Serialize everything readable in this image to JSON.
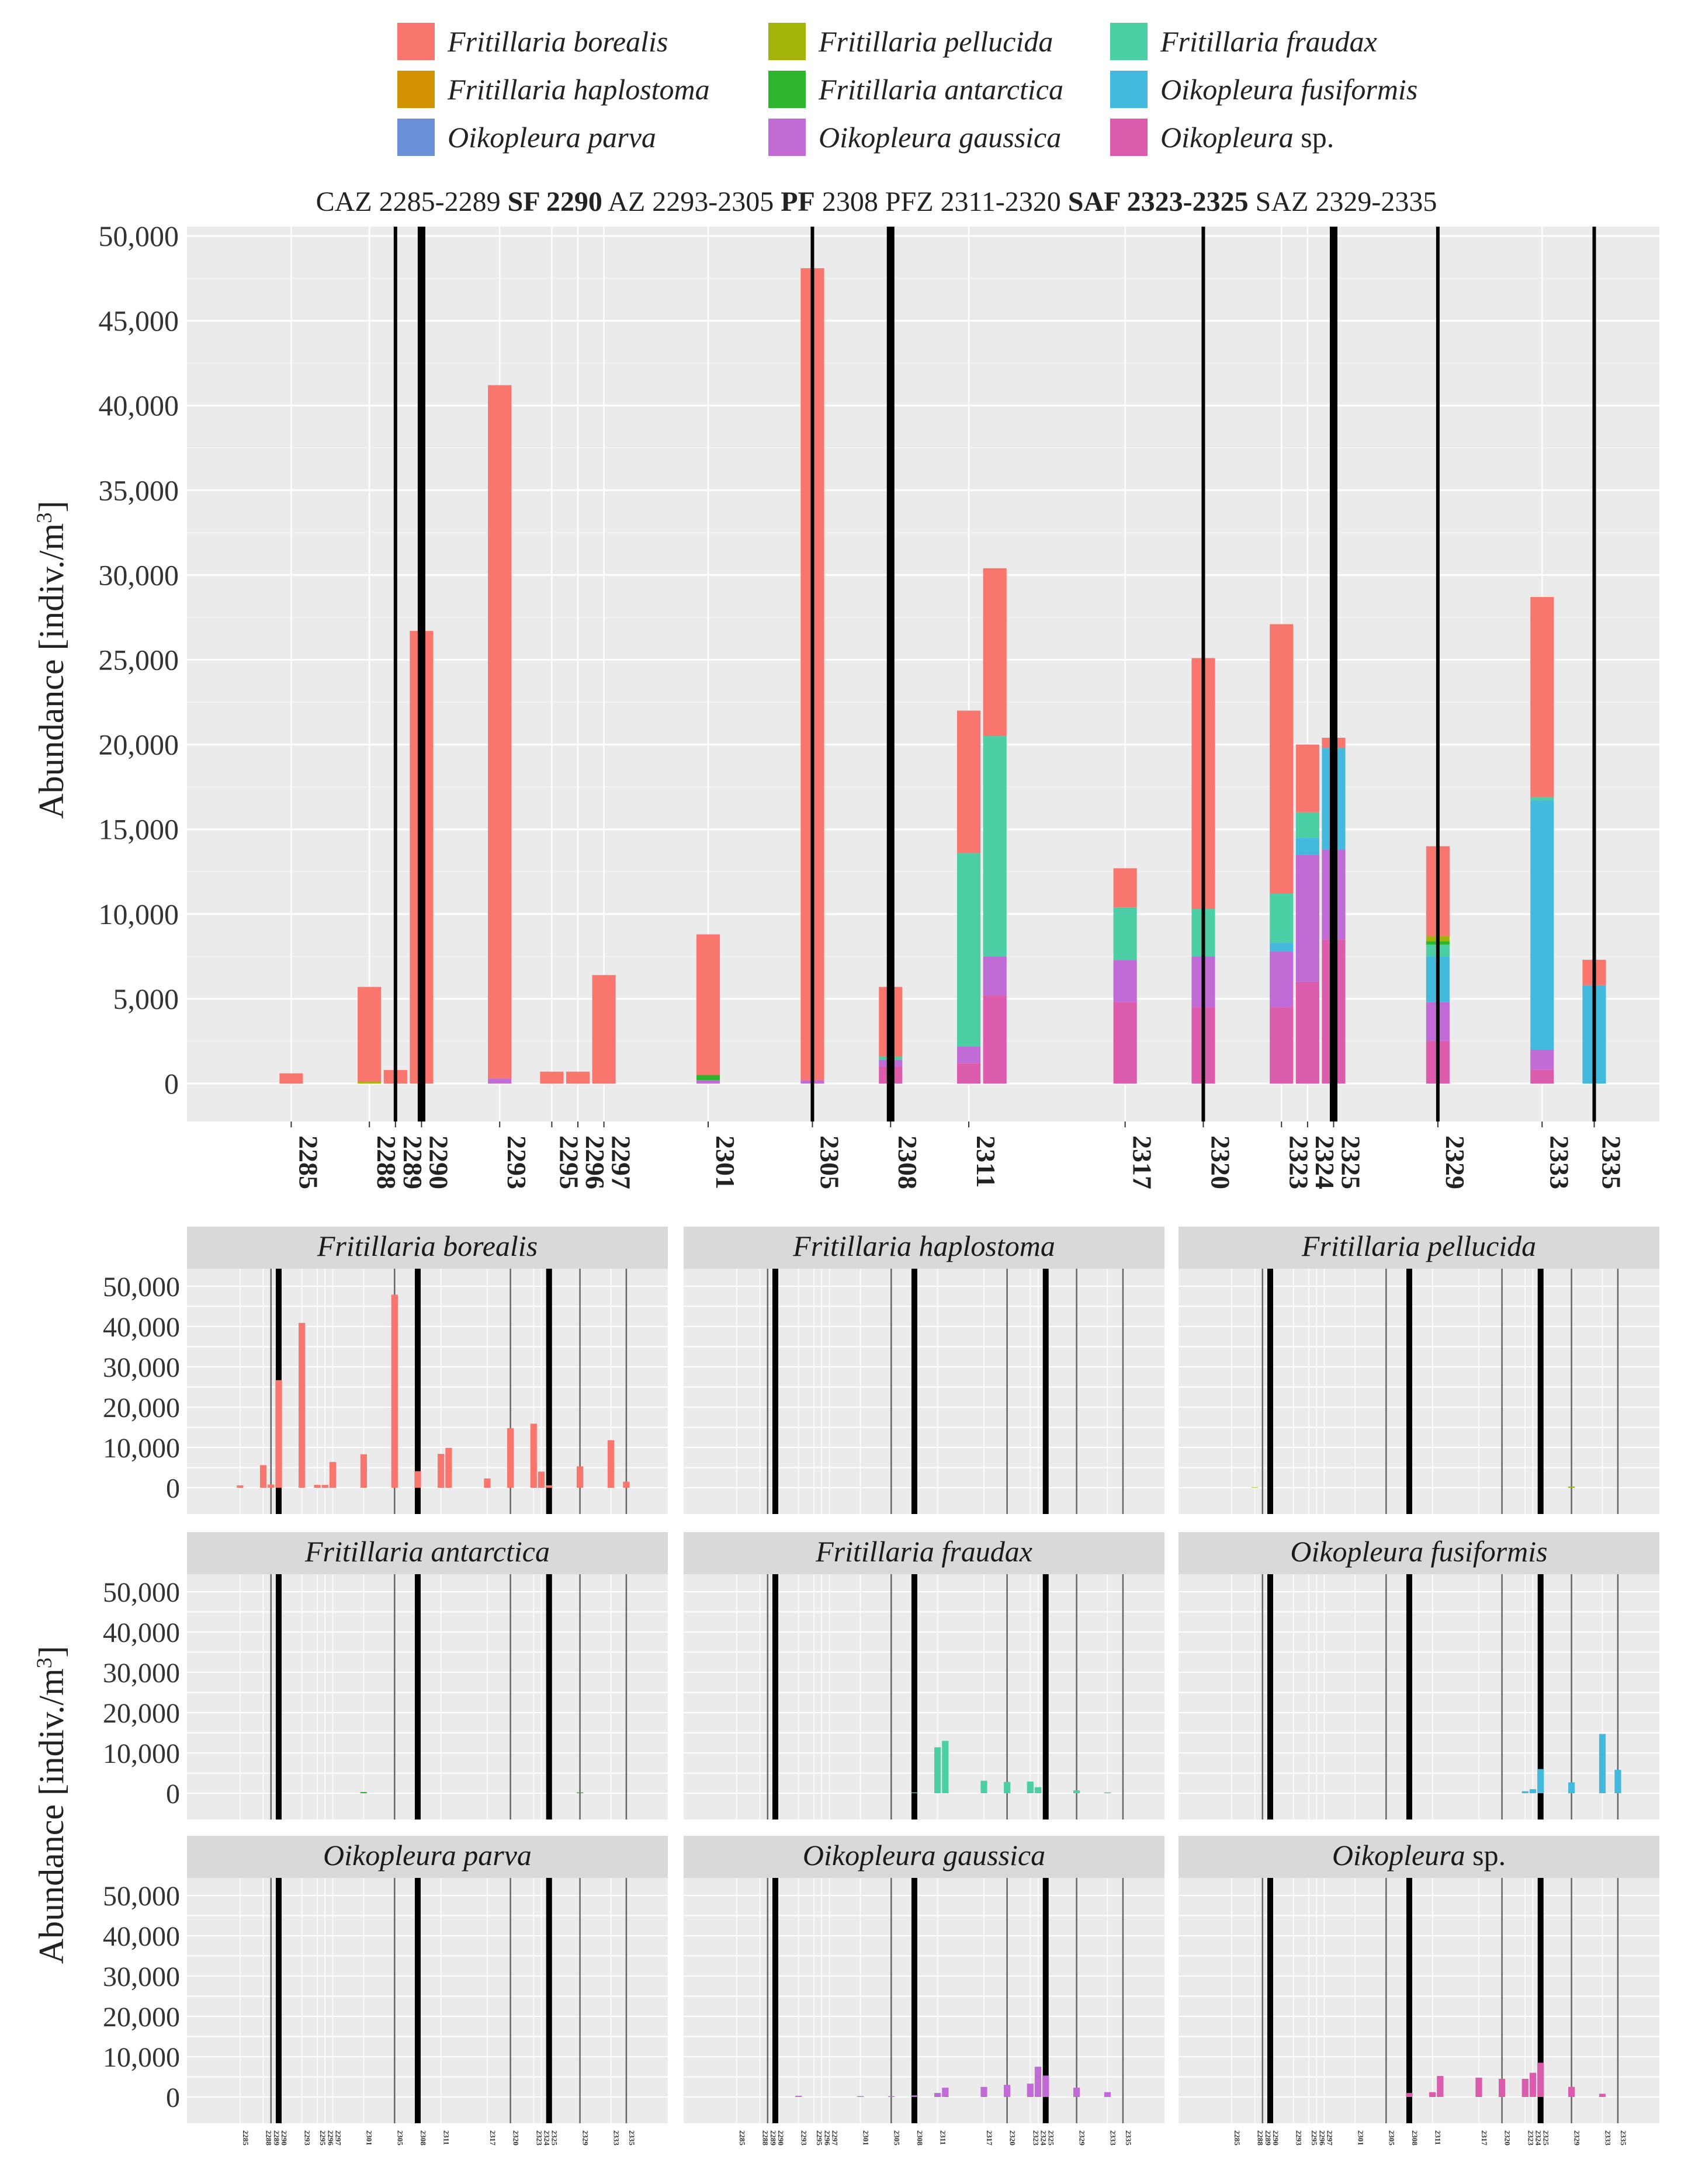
{
  "legend": [
    {
      "genus": "Fritillaria",
      "epithet": "borealis",
      "color": "#F8766D"
    },
    {
      "genus": "Fritillaria",
      "epithet": "haplostoma",
      "color": "#D39200"
    },
    {
      "genus": "Oikopleura",
      "epithet": "parva",
      "color": "#6A8FD6"
    },
    {
      "genus": "Fritillaria",
      "epithet": "pellucida",
      "color": "#A3B408"
    },
    {
      "genus": "Fritillaria",
      "epithet": "antarctica",
      "color": "#2DB52D"
    },
    {
      "genus": "Oikopleura",
      "epithet": "gaussica",
      "color": "#C06BD6"
    },
    {
      "genus": "Fritillaria",
      "epithet": "fraudax",
      "color": "#4DCFA6"
    },
    {
      "genus": "Oikopleura",
      "epithet": "fusiformis",
      "color": "#43B9DE"
    },
    {
      "genus": "Oikopleura",
      "epithet": "sp.",
      "color": "#DB5CAC"
    }
  ],
  "zones_header": [
    {
      "text": "CAZ 2285-2289 ",
      "bold": false
    },
    {
      "text": "SF 2290",
      "bold": true
    },
    {
      "text": " AZ  2293-2305 ",
      "bold": false
    },
    {
      "text": "PF",
      "bold": true
    },
    {
      "text": " 2308  PFZ 2311-2320 ",
      "bold": false
    },
    {
      "text": "SAF 2323-2325",
      "bold": true
    },
    {
      "text": " SAZ 2329-2335",
      "bold": false
    }
  ],
  "chart_data": [
    {
      "type": "bar",
      "stacked": true,
      "ylabel": "Abundance [indiv./m",
      "ylabel_superscript": "3",
      "ylabel_close": "]",
      "ylim": [
        0,
        50000
      ],
      "yticks": [
        0,
        5000,
        10000,
        15000,
        20000,
        25000,
        30000,
        35000,
        40000,
        45000,
        50000
      ],
      "ytick_labels": [
        "0",
        "5,000",
        "10,000",
        "15,000",
        "20,000",
        "25,000",
        "30,000",
        "35,000",
        "40,000",
        "45,000",
        "50,000"
      ],
      "grid": true,
      "xlim": [
        2281,
        2337.5
      ],
      "categories": [
        2285,
        2288,
        2289,
        2290,
        2293,
        2295,
        2296,
        2297,
        2301,
        2305,
        2308,
        2311,
        2312,
        2317,
        2320,
        2323,
        2324,
        2325,
        2329,
        2333,
        2335
      ],
      "x_tick_labels": [
        "2285",
        "2288",
        "2289",
        "2290",
        "2293",
        "2295",
        "2296",
        "2297",
        "2301",
        "2305",
        "2308",
        "2311",
        "2317",
        "2320",
        "2323",
        "2324",
        "2325",
        "2329",
        "2333",
        "2335"
      ],
      "x_tick_positions": [
        2285,
        2288,
        2289,
        2290,
        2293,
        2295,
        2296,
        2297,
        2301,
        2305,
        2308,
        2311,
        2317,
        2320,
        2323,
        2324,
        2325,
        2329,
        2333,
        2335
      ],
      "boundary_lines": [
        {
          "x": 2289,
          "weight": "thin"
        },
        {
          "x": 2290,
          "weight": "thick"
        },
        {
          "x": 2305,
          "weight": "thin"
        },
        {
          "x": 2308,
          "weight": "thick"
        },
        {
          "x": 2320,
          "weight": "thin"
        },
        {
          "x": 2325,
          "weight": "thick"
        },
        {
          "x": 2329,
          "weight": "thin"
        },
        {
          "x": 2335,
          "weight": "thin"
        }
      ],
      "series": [
        {
          "name": "Oikopleura sp.",
          "color": "#DB5CAC",
          "values": [
            0,
            0,
            0,
            0,
            0,
            0,
            0,
            0,
            0,
            0,
            1000,
            1200,
            5200,
            4800,
            4500,
            4500,
            6000,
            8500,
            2500,
            800,
            0
          ]
        },
        {
          "name": "Oikopleura gaussica",
          "color": "#C06BD6",
          "values": [
            0,
            0,
            0,
            0,
            300,
            0,
            0,
            0,
            200,
            200,
            400,
            1000,
            2300,
            2500,
            3000,
            3300,
            7500,
            5300,
            2300,
            1200,
            0
          ]
        },
        {
          "name": "Oikopleura parva",
          "color": "#6A8FD6",
          "values": [
            0,
            0,
            0,
            0,
            0,
            0,
            0,
            0,
            0,
            0,
            0,
            0,
            0,
            0,
            0,
            0,
            0,
            0,
            0,
            0,
            0
          ]
        },
        {
          "name": "Oikopleura fusiformis",
          "color": "#43B9DE",
          "values": [
            0,
            0,
            0,
            0,
            0,
            0,
            0,
            0,
            0,
            0,
            0,
            0,
            0,
            0,
            0,
            500,
            1000,
            6000,
            2700,
            14700,
            5800
          ]
        },
        {
          "name": "Fritillaria fraudax",
          "color": "#4DCFA6",
          "values": [
            0,
            0,
            0,
            0,
            0,
            0,
            0,
            0,
            0,
            0,
            200,
            11400,
            13000,
            3100,
            2800,
            2900,
            1500,
            0,
            700,
            200,
            0
          ]
        },
        {
          "name": "Fritillaria antarctica",
          "color": "#2DB52D",
          "values": [
            0,
            0,
            0,
            0,
            0,
            0,
            0,
            0,
            300,
            0,
            0,
            0,
            0,
            0,
            0,
            0,
            0,
            0,
            200,
            0,
            0
          ]
        },
        {
          "name": "Fritillaria pellucida",
          "color": "#A3B408",
          "values": [
            0,
            100,
            0,
            0,
            0,
            0,
            0,
            0,
            0,
            0,
            0,
            0,
            0,
            0,
            0,
            0,
            0,
            0,
            300,
            0,
            0
          ]
        },
        {
          "name": "Fritillaria haplostoma",
          "color": "#D39200",
          "values": [
            0,
            0,
            0,
            0,
            0,
            0,
            0,
            0,
            0,
            0,
            0,
            0,
            0,
            0,
            0,
            0,
            0,
            0,
            0,
            0,
            0
          ]
        },
        {
          "name": "Fritillaria borealis",
          "color": "#F8766D",
          "values": [
            600,
            5600,
            800,
            26700,
            40900,
            700,
            700,
            6400,
            8300,
            47900,
            4100,
            8400,
            9900,
            2300,
            14800,
            15900,
            4000,
            600,
            5300,
            11800,
            1500
          ]
        }
      ]
    },
    {
      "type": "bar",
      "facets": true,
      "ylabel": "Abundance [indiv./m",
      "ylabel_superscript": "3",
      "ylabel_close": "]",
      "ylim": [
        0,
        50000
      ],
      "categories": [
        2285,
        2288,
        2289,
        2290,
        2293,
        2295,
        2296,
        2297,
        2301,
        2305,
        2308,
        2311,
        2312,
        2317,
        2320,
        2323,
        2324,
        2325,
        2329,
        2333,
        2335
      ],
      "panels": [
        {
          "genus": "Fritillaria",
          "epithet": "borealis",
          "color": "#F8766D",
          "values": [
            600,
            5600,
            800,
            26700,
            40900,
            700,
            700,
            6400,
            8300,
            47900,
            4100,
            8400,
            9900,
            2300,
            14800,
            15900,
            4000,
            600,
            5300,
            11800,
            1500
          ]
        },
        {
          "genus": "Fritillaria",
          "epithet": "haplostoma",
          "color": "#D39200",
          "values": [
            0,
            0,
            0,
            0,
            0,
            0,
            0,
            0,
            0,
            0,
            0,
            0,
            0,
            0,
            0,
            0,
            0,
            0,
            0,
            0,
            0
          ]
        },
        {
          "genus": "Fritillaria",
          "epithet": "pellucida",
          "color": "#A3B408",
          "values": [
            0,
            100,
            0,
            0,
            0,
            0,
            0,
            0,
            0,
            0,
            0,
            0,
            0,
            0,
            0,
            0,
            0,
            0,
            300,
            0,
            0
          ]
        },
        {
          "genus": "Fritillaria",
          "epithet": "antarctica",
          "color": "#2DB52D",
          "values": [
            0,
            0,
            0,
            0,
            0,
            0,
            0,
            0,
            300,
            0,
            0,
            0,
            0,
            0,
            0,
            0,
            0,
            0,
            200,
            0,
            0
          ]
        },
        {
          "genus": "Fritillaria",
          "epithet": "fraudax",
          "color": "#4DCFA6",
          "values": [
            0,
            0,
            0,
            0,
            0,
            0,
            0,
            0,
            0,
            0,
            200,
            11400,
            13000,
            3100,
            2800,
            2900,
            1500,
            0,
            700,
            200,
            0
          ]
        },
        {
          "genus": "Oikopleura",
          "epithet": "fusiformis",
          "color": "#43B9DE",
          "values": [
            0,
            0,
            0,
            0,
            0,
            0,
            0,
            0,
            0,
            0,
            0,
            0,
            0,
            0,
            0,
            500,
            1000,
            6000,
            2700,
            14700,
            5800
          ]
        },
        {
          "genus": "Oikopleura",
          "epithet": "parva",
          "color": "#6A8FD6",
          "values": [
            0,
            0,
            0,
            0,
            0,
            0,
            0,
            0,
            0,
            0,
            0,
            0,
            0,
            0,
            0,
            0,
            0,
            0,
            0,
            0,
            0
          ]
        },
        {
          "genus": "Oikopleura",
          "epithet": "gaussica",
          "color": "#C06BD6",
          "values": [
            0,
            0,
            0,
            0,
            300,
            0,
            0,
            0,
            200,
            200,
            400,
            1000,
            2300,
            2500,
            3000,
            3300,
            7500,
            5300,
            2300,
            1200,
            0
          ]
        },
        {
          "genus": "Oikopleura",
          "epithet": "sp.",
          "color": "#DB5CAC",
          "values": [
            0,
            0,
            0,
            0,
            0,
            0,
            0,
            0,
            0,
            0,
            1000,
            1200,
            5200,
            4800,
            4500,
            4500,
            6000,
            8500,
            2500,
            800,
            0
          ]
        }
      ]
    }
  ]
}
